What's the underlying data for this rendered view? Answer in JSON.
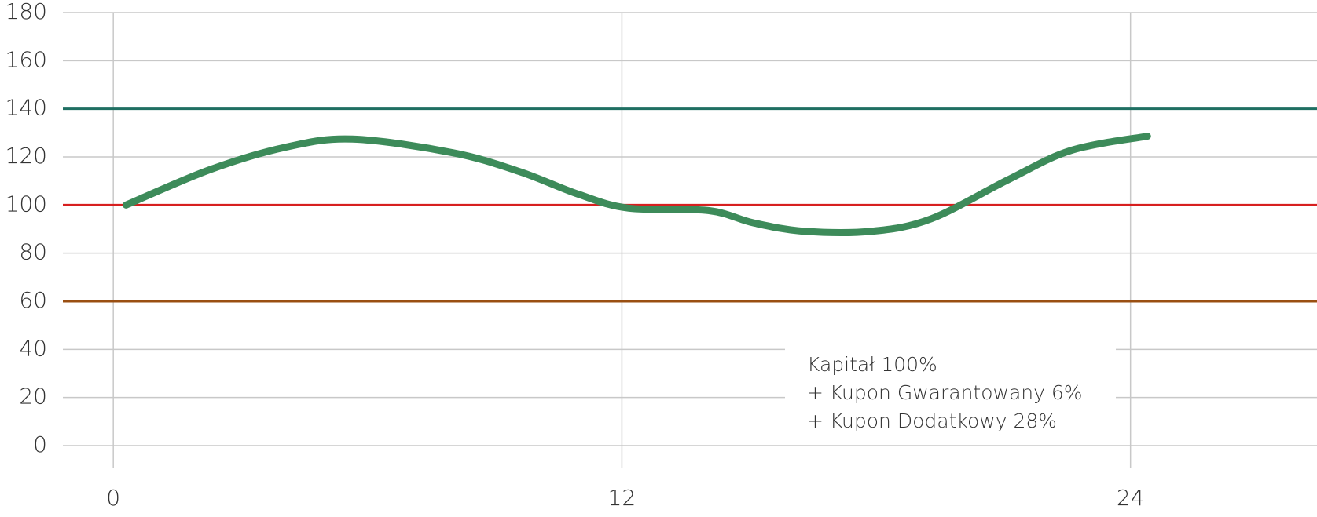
{
  "chart_data": {
    "type": "line",
    "x": [
      0.3,
      2.28,
      4.06,
      5.64,
      8.02,
      9.6,
      10.97,
      12.16,
      14.04,
      15.1,
      16.3,
      17.9,
      19.3,
      21.1,
      22.6,
      24.4
    ],
    "series": [
      {
        "color": "#3d8b5a",
        "values": [
          100,
          114.7,
          124,
          127.4,
          121.7,
          113.8,
          104.5,
          98.7,
          97.7,
          92.6,
          89.1,
          89.1,
          94.3,
          110.4,
          122.7,
          128.6
        ]
      }
    ],
    "reference_lines": [
      {
        "value": 140,
        "color": "#1f6f62"
      },
      {
        "value": 100,
        "color": "#d71f1f"
      },
      {
        "value": 60,
        "color": "#9a4f12"
      }
    ],
    "xlim": [
      -1.19,
      28.4
    ],
    "ylim": [
      0,
      180
    ],
    "xticks": [
      0,
      12,
      24
    ],
    "yticks": [
      0,
      20,
      40,
      60,
      80,
      100,
      120,
      140,
      160,
      180
    ],
    "grid": true,
    "annotation": [
      "Kapitał 100%",
      "+ Kupon Gwarantowany 6%",
      "+ Kupon Dodatkowy 28%"
    ]
  }
}
